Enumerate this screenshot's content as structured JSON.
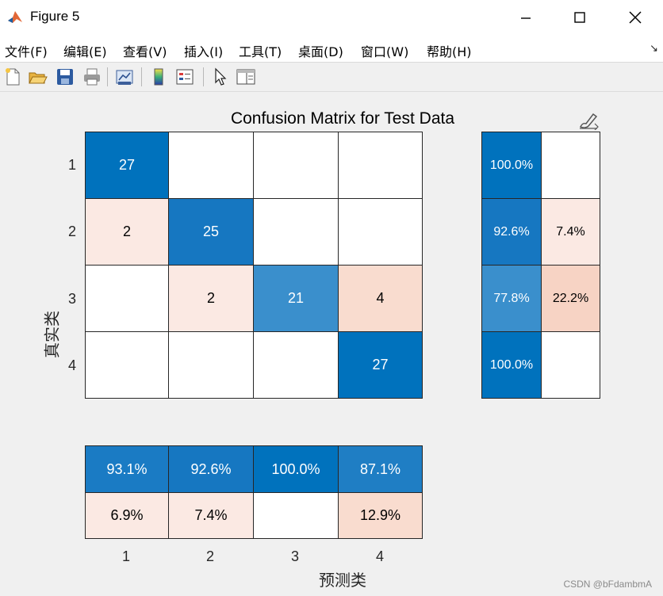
{
  "window": {
    "title": "Figure 5",
    "controls": [
      "minimize",
      "maximize",
      "close"
    ]
  },
  "menu": {
    "items": [
      "文件(F)",
      "编辑(E)",
      "查看(V)",
      "插入(I)",
      "工具(T)",
      "桌面(D)",
      "窗口(W)",
      "帮助(H)"
    ],
    "dock_icon": "↘"
  },
  "toolbar": {
    "icons": [
      "new-figure-icon",
      "open-file-icon",
      "save-icon",
      "print-icon",
      "link-plot-icon",
      "colorbar-icon",
      "legend-icon",
      "pointer-icon",
      "property-inspector-icon"
    ]
  },
  "figure": {
    "axes_edit_icon": "brush-edit-icon",
    "watermark": "CSDN @bFdambmA"
  },
  "colors": {
    "strong_blue": "#0072bd",
    "blue_25": "#1677c1",
    "blue_21": "#3a8fcc",
    "blue_93": "#1a7bc4",
    "blue_87": "#1f7ec4",
    "pale": "#fbe9e3",
    "peach": "#f9dccf",
    "peach_strong": "#f7d3c4",
    "white": "#ffffff"
  },
  "chart_data": {
    "type": "heatmap",
    "title": "Confusion Matrix for Test Data",
    "xlabel": "预测类",
    "ylabel": "真实类",
    "classes": [
      "1",
      "2",
      "3",
      "4"
    ],
    "matrix": [
      [
        "27",
        "",
        "",
        ""
      ],
      [
        "2",
        "25",
        "",
        ""
      ],
      [
        "",
        "2",
        "21",
        "4"
      ],
      [
        "",
        "",
        "",
        "27"
      ]
    ],
    "row_summary": [
      [
        "100.0%",
        ""
      ],
      [
        "92.6%",
        "7.4%"
      ],
      [
        "77.8%",
        "22.2%"
      ],
      [
        "100.0%",
        ""
      ]
    ],
    "column_summary": [
      [
        "93.1%",
        "92.6%",
        "100.0%",
        "87.1%"
      ],
      [
        "6.9%",
        "7.4%",
        "",
        "12.9%"
      ]
    ]
  }
}
